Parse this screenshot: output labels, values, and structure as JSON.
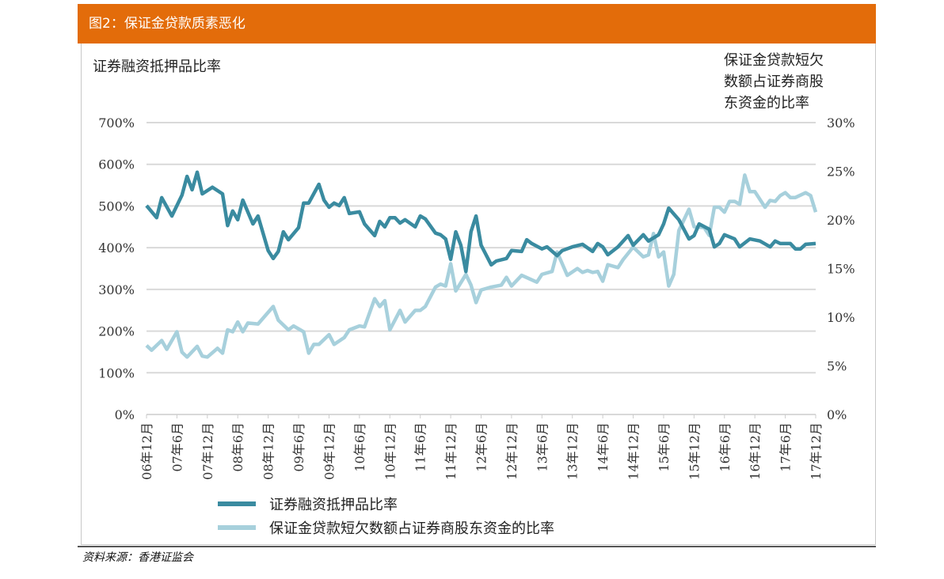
{
  "header": {
    "title": "图2：保证金贷款质素恶化"
  },
  "source": "资料来源：香港证监会",
  "chart_data": {
    "type": "line",
    "title": "保证金贷款质素恶化",
    "left_axis_title": "证券融资抵押品比率",
    "right_axis_title": "保证金贷款短欠数额占证券商股东资金的比率",
    "left_ylim": [
      0,
      700
    ],
    "left_ticks": [
      "0%",
      "100%",
      "200%",
      "300%",
      "400%",
      "500%",
      "600%",
      "700%"
    ],
    "right_ylim": [
      0,
      30
    ],
    "right_ticks": [
      "0%",
      "5%",
      "10%",
      "15%",
      "20%",
      "25%",
      "30%"
    ],
    "x_range": [
      "2006-12",
      "2017-12"
    ],
    "x_ticks": [
      "06年12月",
      "07年6月",
      "07年12月",
      "08年6月",
      "08年12月",
      "09年6月",
      "09年12月",
      "10年6月",
      "10年12月",
      "11年6月",
      "11年12月",
      "12年6月",
      "12年12月",
      "13年6月",
      "13年12月",
      "14年6月",
      "14年12月",
      "15年6月",
      "15年12月",
      "16年6月",
      "16年12月",
      "17年6月",
      "17年12月"
    ],
    "grid": true,
    "legend": "bottom",
    "series": [
      {
        "name": "证券融资抵押品比率",
        "axis": "left",
        "color": "#3a8ba0",
        "points": [
          [
            "2006-12",
            501
          ],
          [
            "2007-02",
            472
          ],
          [
            "2007-03",
            520
          ],
          [
            "2007-05",
            476
          ],
          [
            "2007-07",
            526
          ],
          [
            "2007-08",
            571
          ],
          [
            "2007-09",
            539
          ],
          [
            "2007-10",
            581
          ],
          [
            "2007-11",
            529
          ],
          [
            "2008-01",
            545
          ],
          [
            "2008-03",
            529
          ],
          [
            "2008-04",
            453
          ],
          [
            "2008-05",
            488
          ],
          [
            "2008-06",
            467
          ],
          [
            "2008-07",
            514
          ],
          [
            "2008-09",
            457
          ],
          [
            "2008-10",
            476
          ],
          [
            "2008-12",
            393
          ],
          [
            "2009-01",
            374
          ],
          [
            "2009-02",
            391
          ],
          [
            "2009-03",
            438
          ],
          [
            "2009-04",
            419
          ],
          [
            "2009-06",
            448
          ],
          [
            "2009-07",
            507
          ],
          [
            "2009-08",
            507
          ],
          [
            "2009-10",
            552
          ],
          [
            "2009-11",
            514
          ],
          [
            "2009-12",
            497
          ],
          [
            "2010-01",
            507
          ],
          [
            "2010-02",
            501
          ],
          [
            "2010-03",
            520
          ],
          [
            "2010-04",
            482
          ],
          [
            "2010-06",
            486
          ],
          [
            "2010-07",
            457
          ],
          [
            "2010-09",
            429
          ],
          [
            "2010-10",
            463
          ],
          [
            "2010-11",
            450
          ],
          [
            "2010-12",
            472
          ],
          [
            "2011-01",
            472
          ],
          [
            "2011-02",
            459
          ],
          [
            "2011-03",
            467
          ],
          [
            "2011-05",
            450
          ],
          [
            "2011-06",
            476
          ],
          [
            "2011-07",
            469
          ],
          [
            "2011-09",
            435
          ],
          [
            "2011-10",
            431
          ],
          [
            "2011-11",
            421
          ],
          [
            "2011-12",
            372
          ],
          [
            "2012-01",
            438
          ],
          [
            "2012-02",
            406
          ],
          [
            "2012-03",
            343
          ],
          [
            "2012-04",
            438
          ],
          [
            "2012-05",
            476
          ],
          [
            "2012-06",
            406
          ],
          [
            "2012-08",
            359
          ],
          [
            "2012-09",
            368
          ],
          [
            "2012-11",
            374
          ],
          [
            "2012-12",
            393
          ],
          [
            "2013-02",
            391
          ],
          [
            "2013-03",
            419
          ],
          [
            "2013-04",
            410
          ],
          [
            "2013-06",
            397
          ],
          [
            "2013-07",
            402
          ],
          [
            "2013-09",
            381
          ],
          [
            "2013-10",
            393
          ],
          [
            "2013-12",
            402
          ],
          [
            "2014-02",
            408
          ],
          [
            "2014-04",
            391
          ],
          [
            "2014-05",
            410
          ],
          [
            "2014-06",
            402
          ],
          [
            "2014-07",
            383
          ],
          [
            "2014-09",
            402
          ],
          [
            "2014-11",
            429
          ],
          [
            "2014-12",
            406
          ],
          [
            "2015-02",
            431
          ],
          [
            "2015-03",
            416
          ],
          [
            "2015-05",
            431
          ],
          [
            "2015-06",
            457
          ],
          [
            "2015-07",
            495
          ],
          [
            "2015-09",
            467
          ],
          [
            "2015-11",
            421
          ],
          [
            "2015-12",
            429
          ],
          [
            "2016-01",
            457
          ],
          [
            "2016-03",
            444
          ],
          [
            "2016-04",
            402
          ],
          [
            "2016-05",
            410
          ],
          [
            "2016-06",
            431
          ],
          [
            "2016-08",
            421
          ],
          [
            "2016-09",
            402
          ],
          [
            "2016-11",
            421
          ],
          [
            "2017-01",
            416
          ],
          [
            "2017-03",
            402
          ],
          [
            "2017-04",
            416
          ],
          [
            "2017-05",
            410
          ],
          [
            "2017-07",
            410
          ],
          [
            "2017-08",
            397
          ],
          [
            "2017-09",
            397
          ],
          [
            "2017-10",
            408
          ],
          [
            "2017-12",
            410
          ]
        ]
      },
      {
        "name": "保证金贷款短欠数额占证券商股东资金的比率",
        "axis": "right",
        "color": "#a7d0dc",
        "points": [
          [
            "2006-12",
            7.1
          ],
          [
            "2007-01",
            6.6
          ],
          [
            "2007-03",
            7.6
          ],
          [
            "2007-04",
            6.7
          ],
          [
            "2007-06",
            8.5
          ],
          [
            "2007-07",
            6.4
          ],
          [
            "2007-08",
            5.9
          ],
          [
            "2007-10",
            7.0
          ],
          [
            "2007-11",
            6.0
          ],
          [
            "2007-12",
            5.9
          ],
          [
            "2008-02",
            6.8
          ],
          [
            "2008-03",
            6.3
          ],
          [
            "2008-04",
            8.7
          ],
          [
            "2008-05",
            8.5
          ],
          [
            "2008-06",
            9.5
          ],
          [
            "2008-07",
            8.5
          ],
          [
            "2008-08",
            9.4
          ],
          [
            "2008-10",
            9.3
          ],
          [
            "2009-01",
            11.1
          ],
          [
            "2009-02",
            9.7
          ],
          [
            "2009-04",
            8.7
          ],
          [
            "2009-05",
            9.1
          ],
          [
            "2009-07",
            8.5
          ],
          [
            "2009-08",
            6.3
          ],
          [
            "2009-09",
            7.2
          ],
          [
            "2009-10",
            7.2
          ],
          [
            "2009-12",
            8.2
          ],
          [
            "2010-01",
            7.2
          ],
          [
            "2010-03",
            7.9
          ],
          [
            "2010-04",
            8.7
          ],
          [
            "2010-06",
            9.1
          ],
          [
            "2010-07",
            9.0
          ],
          [
            "2010-09",
            11.9
          ],
          [
            "2010-10",
            11.1
          ],
          [
            "2010-11",
            11.7
          ],
          [
            "2010-12",
            8.7
          ],
          [
            "2011-02",
            10.7
          ],
          [
            "2011-03",
            9.5
          ],
          [
            "2011-05",
            10.7
          ],
          [
            "2011-06",
            10.7
          ],
          [
            "2011-07",
            11.1
          ],
          [
            "2011-09",
            13.1
          ],
          [
            "2011-10",
            13.4
          ],
          [
            "2011-11",
            13.2
          ],
          [
            "2011-12",
            15.5
          ],
          [
            "2012-01",
            12.7
          ],
          [
            "2012-03",
            14.4
          ],
          [
            "2012-04",
            13.3
          ],
          [
            "2012-05",
            11.5
          ],
          [
            "2012-06",
            12.8
          ],
          [
            "2012-08",
            13.1
          ],
          [
            "2012-10",
            13.3
          ],
          [
            "2012-11",
            14.1
          ],
          [
            "2012-12",
            13.2
          ],
          [
            "2013-02",
            14.3
          ],
          [
            "2013-05",
            13.6
          ],
          [
            "2013-06",
            14.4
          ],
          [
            "2013-08",
            14.7
          ],
          [
            "2013-09",
            16.7
          ],
          [
            "2013-11",
            14.3
          ],
          [
            "2014-01",
            15.0
          ],
          [
            "2014-02",
            14.6
          ],
          [
            "2014-03",
            14.8
          ],
          [
            "2014-04",
            14.6
          ],
          [
            "2014-05",
            14.7
          ],
          [
            "2014-06",
            13.7
          ],
          [
            "2014-07",
            15.4
          ],
          [
            "2014-09",
            15.1
          ],
          [
            "2014-10",
            15.9
          ],
          [
            "2014-12",
            17.2
          ],
          [
            "2015-02",
            16.2
          ],
          [
            "2015-03",
            16.4
          ],
          [
            "2015-04",
            18.6
          ],
          [
            "2015-05",
            16.2
          ],
          [
            "2015-06",
            16.7
          ],
          [
            "2015-07",
            13.2
          ],
          [
            "2015-08",
            14.4
          ],
          [
            "2015-09",
            18.9
          ],
          [
            "2015-11",
            21.1
          ],
          [
            "2015-12",
            19.3
          ],
          [
            "2016-02",
            19.2
          ],
          [
            "2016-03",
            18.4
          ],
          [
            "2016-04",
            21.3
          ],
          [
            "2016-05",
            21.3
          ],
          [
            "2016-06",
            20.8
          ],
          [
            "2016-07",
            21.9
          ],
          [
            "2016-08",
            21.9
          ],
          [
            "2016-09",
            21.6
          ],
          [
            "2016-10",
            24.6
          ],
          [
            "2016-11",
            22.9
          ],
          [
            "2016-12",
            22.9
          ],
          [
            "2017-02",
            21.3
          ],
          [
            "2017-03",
            22.0
          ],
          [
            "2017-04",
            21.9
          ],
          [
            "2017-05",
            22.5
          ],
          [
            "2017-06",
            22.8
          ],
          [
            "2017-07",
            22.3
          ],
          [
            "2017-08",
            22.3
          ],
          [
            "2017-10",
            22.8
          ],
          [
            "2017-11",
            22.5
          ],
          [
            "2017-12",
            20.8
          ]
        ]
      }
    ]
  }
}
